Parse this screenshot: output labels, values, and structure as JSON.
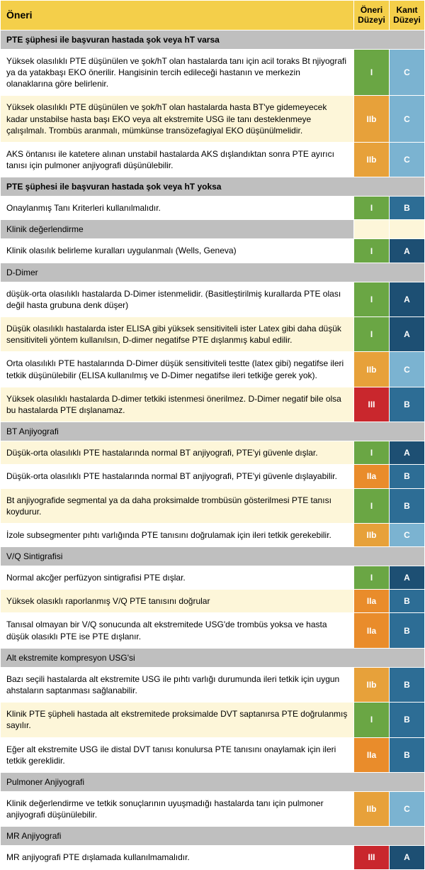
{
  "header": {
    "title": "Öneri",
    "col_rec": "Öneri Düzeyi",
    "col_ev": "Kanıt Düzeyi"
  },
  "sections": [
    {
      "type": "section",
      "text": "PTE şüphesi ile başvuran hastada şok veya hT varsa"
    },
    {
      "type": "row",
      "alt": false,
      "text": "Yüksek olasılıklı PTE düşünülen ve şok/hT olan hastalarda tanı için acil toraks Bt njiyografi ya da yatakbaşı EKO önerilir. Hangisinin tercih edileceği hastanın ve merkezin olanaklarına göre belirlenir.",
      "rec": "I",
      "ev": "C"
    },
    {
      "type": "row",
      "alt": true,
      "text": "Yüksek olasılıklı PTE düşünülen ve şok/hT olan hastalarda hasta BT'ye gidemeyecek kadar unstabilse hasta başı EKO veya alt ekstremite USG ile tanı desteklenmeye çalışılmalı. Trombüs aranmalı, mümkünse transözefagiyal EKO düşünülmelidir.",
      "rec": "IIb",
      "ev": "C"
    },
    {
      "type": "row",
      "alt": false,
      "text": "AKS öntanısı ile katetere alınan unstabil hastalarda AKS dışlandıktan sonra PTE ayırıcı tanısı için pulmoner anjiyografi düşünülebilir.",
      "rec": "IIb",
      "ev": "C"
    },
    {
      "type": "section",
      "text": "PTE şüphesi ile başvuran hastada şok veya hT yoksa"
    },
    {
      "type": "row",
      "alt": false,
      "text": "Onaylanmış Tanı Kriterleri kullanılmalıdır.",
      "rec": "I",
      "ev": "B"
    },
    {
      "type": "blankrow",
      "text": "Klinik değerlendirme"
    },
    {
      "type": "row",
      "alt": false,
      "text": "Klinik olasılık belirleme kuralları uygulanmalı (Wells, Geneva)",
      "rec": "I",
      "ev": "A"
    },
    {
      "type": "sub",
      "text": "D-Dimer"
    },
    {
      "type": "row",
      "alt": false,
      "text": "düşük-orta olasılıklı hastalarda D-Dimer istenmelidir. (Basitleştirilmiş kurallarda PTE olası değil hasta grubuna denk düşer)",
      "rec": "I",
      "ev": "A"
    },
    {
      "type": "row",
      "alt": true,
      "text": "Düşük olasılıklı hastalarda ister ELISA gibi yüksek sensitiviteli ister Latex gibi daha düşük sensitiviteli yöntem kullanılsın, D-dimer negatifse PTE dışlanmış kabul edilir.",
      "rec": "I",
      "ev": "A"
    },
    {
      "type": "row",
      "alt": false,
      "text": "Orta olasılıklı PTE hastalarında D-Dimer düşük sensitiviteli testte (latex gibi) negatifse ileri tetkik düşünülebilir (ELISA kullanılmış ve D-Dimer negatifse ileri tetkiğe gerek yok).",
      "rec": "IIb",
      "ev": "C"
    },
    {
      "type": "row",
      "alt": true,
      "text": "Yüksek olasılıklı hastalarda D-dimer tetkiki istenmesi önerilmez. D-Dimer negatif bile olsa bu hastalarda PTE dışlanamaz.",
      "rec": "III",
      "ev": "B"
    },
    {
      "type": "sub",
      "text": "BT Anjiyografi"
    },
    {
      "type": "row",
      "alt": true,
      "text": "Düşük-orta olasılıklı PTE hastalarında normal BT anjiyografi, PTE'yi güvenle dışlar.",
      "rec": "I",
      "ev": "A"
    },
    {
      "type": "row",
      "alt": false,
      "text": "Düşük-orta olasılıklı PTE hastalarında normal BT anjiyografi, PTE'yi güvenle dışlayabilir.",
      "rec": "IIa",
      "ev": "B"
    },
    {
      "type": "row",
      "alt": true,
      "text": "Bt anjiyografide segmental ya da daha proksimalde trombüsün gösterilmesi PTE tanısı koydurur.",
      "rec": "I",
      "ev": "B"
    },
    {
      "type": "row",
      "alt": false,
      "text": "İzole subsegmenter pıhtı varlığında PTE tanısını doğrulamak için ileri tetkik gerekebilir.",
      "rec": "IIb",
      "ev": "C"
    },
    {
      "type": "sub",
      "text": "V/Q Sintigrafisi"
    },
    {
      "type": "row",
      "alt": false,
      "text": "Normal akcğer perfüzyon sintigrafisi PTE dışlar.",
      "rec": "I",
      "ev": "A"
    },
    {
      "type": "row",
      "alt": true,
      "text": "Yüksek olasıklı raporlanmış V/Q PTE tanısını doğrular",
      "rec": "IIa",
      "ev": "B"
    },
    {
      "type": "row",
      "alt": false,
      "text": "Tanısal olmayan bir V/Q sonucunda alt ekstremitede USG'de  trombüs yoksa ve hasta düşük olasıklı PTE ise PTE dışlanır.",
      "rec": "IIa",
      "ev": "B"
    },
    {
      "type": "sub",
      "text": "Alt ekstremite kompresyon USG'si"
    },
    {
      "type": "row",
      "alt": false,
      "text": "Bazı seçili hastalarda alt ekstremite USG ile pıhtı varlığı durumunda ileri tetkik için uygun ahstaların saptanması sağlanabilir.",
      "rec": "IIb",
      "ev": "B"
    },
    {
      "type": "row",
      "alt": true,
      "text": "Klinik PTE şüpheli hastada alt ekstremitede proksimalde DVT saptanırsa PTE doğrulanmış sayılır.",
      "rec": "I",
      "ev": "B"
    },
    {
      "type": "row",
      "alt": false,
      "text": "Eğer alt ekstremite USG ile distal DVT tanısı konulursa PTE tanısını onaylamak için ileri tetkik gereklidir.",
      "rec": "IIa",
      "ev": "B"
    },
    {
      "type": "sub",
      "text": "Pulmoner Anjiyografi"
    },
    {
      "type": "row",
      "alt": false,
      "text": "Klinik değerlendirme ve tetkik sonuçlarının uyuşmadığı hastalarda tanı için pulmoner anjiyografi düşünülebilir.",
      "rec": "IIb",
      "ev": "C"
    },
    {
      "type": "sub",
      "text": "MR Anjiyografi"
    },
    {
      "type": "row",
      "alt": false,
      "text": "MR anjiyografi PTE dışlamada kullanılmamalıdır.",
      "rec": "III",
      "ev": "A"
    }
  ],
  "colors": {
    "header_bg": "#f4cf4a",
    "section_bg": "#bfbfbf",
    "alt_bg": "#fdf6d9",
    "rec": {
      "I": "#6aa644",
      "IIa": "#e98c2b",
      "IIb": "#e7a13a",
      "III": "#c9272d"
    },
    "ev": {
      "A": "#1d4f73",
      "B": "#2d6d95",
      "C": "#7bb3d1"
    }
  }
}
